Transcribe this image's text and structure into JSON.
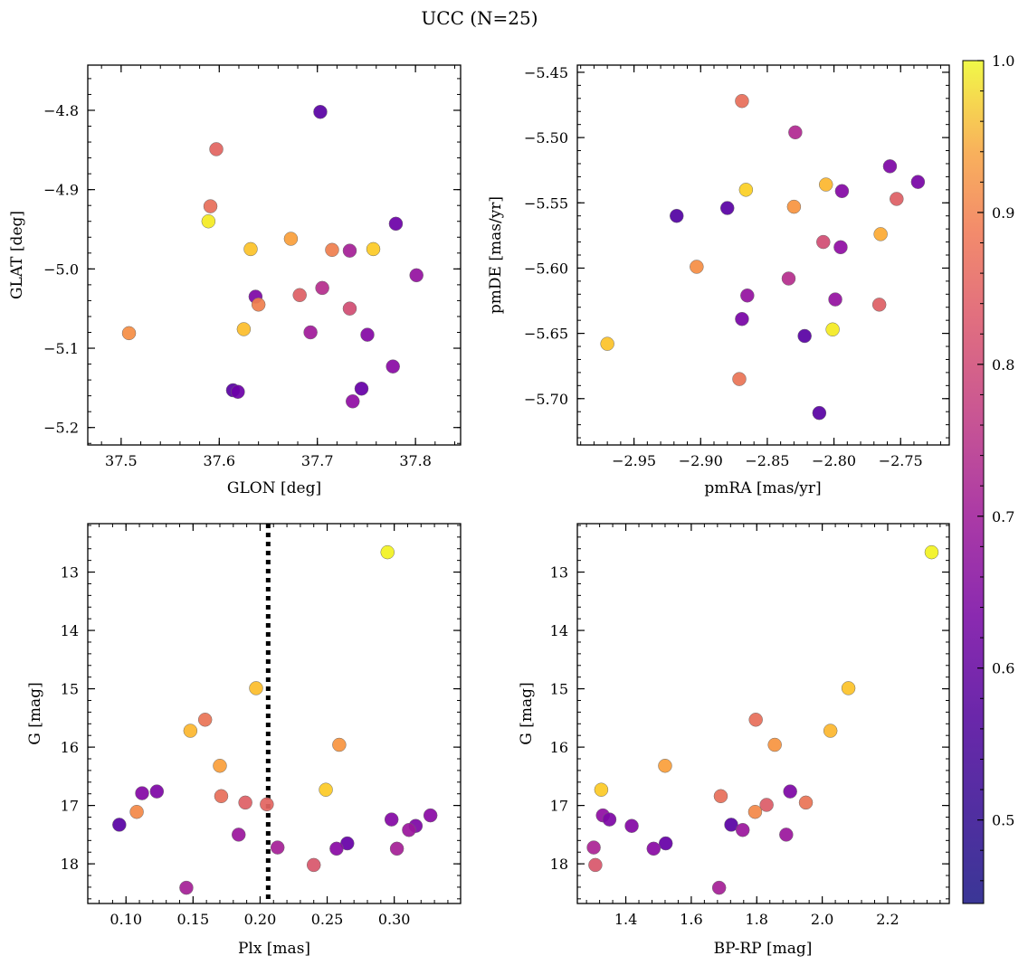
{
  "figure": {
    "title": "UCC (N=25)"
  },
  "colorbar": {
    "ticks": [
      "0.5",
      "0.6",
      "0.7",
      "0.8",
      "0.9",
      "1.0"
    ],
    "tick_values": [
      0.5,
      0.6,
      0.7,
      0.8,
      0.9,
      1.0
    ],
    "range": [
      0.445,
      1.0
    ],
    "colormap": "plasma"
  },
  "chart_data": [
    {
      "type": "scatter",
      "xlabel": "GLON [deg]",
      "ylabel": "GLAT [deg]",
      "xlim": [
        37.466,
        37.846
      ],
      "ylim": [
        -5.222,
        -4.743
      ],
      "xticks": [
        37.5,
        37.6,
        37.7,
        37.8
      ],
      "xtick_labels": [
        "37.5",
        "37.6",
        "37.7",
        "37.8"
      ],
      "yticks": [
        -4.8,
        -4.9,
        -5.0,
        -5.1,
        -5.2
      ],
      "ytick_labels": [
        "−4.8",
        "−4.9",
        "−5.0",
        "−5.1",
        "−5.2"
      ],
      "y_inverted": false,
      "points": [
        {
          "x": 37.703,
          "y": -4.802,
          "c": 0.47
        },
        {
          "x": 37.597,
          "y": -4.849,
          "c": 0.75
        },
        {
          "x": 37.591,
          "y": -4.921,
          "c": 0.77
        },
        {
          "x": 37.589,
          "y": -4.94,
          "c": 0.98
        },
        {
          "x": 37.78,
          "y": -4.943,
          "c": 0.5
        },
        {
          "x": 37.673,
          "y": -4.962,
          "c": 0.86
        },
        {
          "x": 37.632,
          "y": -4.975,
          "c": 0.92
        },
        {
          "x": 37.715,
          "y": -4.976,
          "c": 0.8
        },
        {
          "x": 37.733,
          "y": -4.977,
          "c": 0.6
        },
        {
          "x": 37.757,
          "y": -4.975,
          "c": 0.93
        },
        {
          "x": 37.801,
          "y": -5.008,
          "c": 0.57
        },
        {
          "x": 37.705,
          "y": -5.024,
          "c": 0.63
        },
        {
          "x": 37.682,
          "y": -5.033,
          "c": 0.74
        },
        {
          "x": 37.637,
          "y": -5.035,
          "c": 0.53
        },
        {
          "x": 37.64,
          "y": -5.045,
          "c": 0.8
        },
        {
          "x": 37.733,
          "y": -5.05,
          "c": 0.7
        },
        {
          "x": 37.625,
          "y": -5.076,
          "c": 0.91
        },
        {
          "x": 37.508,
          "y": -5.081,
          "c": 0.83
        },
        {
          "x": 37.693,
          "y": -5.08,
          "c": 0.59
        },
        {
          "x": 37.751,
          "y": -5.083,
          "c": 0.54
        },
        {
          "x": 37.777,
          "y": -5.123,
          "c": 0.55
        },
        {
          "x": 37.745,
          "y": -5.151,
          "c": 0.49
        },
        {
          "x": 37.614,
          "y": -5.153,
          "c": 0.47
        },
        {
          "x": 37.619,
          "y": -5.155,
          "c": 0.5
        },
        {
          "x": 37.736,
          "y": -5.167,
          "c": 0.56
        }
      ]
    },
    {
      "type": "scatter",
      "xlabel": "pmRA [mas/yr]",
      "ylabel": "pmDE [mas/yr]",
      "xlim": [
        -2.9925,
        -2.7135
      ],
      "ylim": [
        -5.7355,
        -5.4445
      ],
      "xticks": [
        -2.95,
        -2.9,
        -2.85,
        -2.8,
        -2.75
      ],
      "xtick_labels": [
        "−2.95",
        "−2.90",
        "−2.85",
        "−2.80",
        "−2.75"
      ],
      "yticks": [
        -5.45,
        -5.5,
        -5.55,
        -5.6,
        -5.65,
        -5.7
      ],
      "ytick_labels": [
        "−5.45",
        "−5.50",
        "−5.55",
        "−5.60",
        "−5.65",
        "−5.70"
      ],
      "y_inverted": false,
      "points": [
        {
          "x": -2.869,
          "y": -5.472,
          "c": 0.77
        },
        {
          "x": -2.829,
          "y": -5.496,
          "c": 0.62
        },
        {
          "x": -2.758,
          "y": -5.522,
          "c": 0.53
        },
        {
          "x": -2.737,
          "y": -5.534,
          "c": 0.52
        },
        {
          "x": -2.806,
          "y": -5.536,
          "c": 0.9
        },
        {
          "x": -2.866,
          "y": -5.54,
          "c": 0.94
        },
        {
          "x": -2.794,
          "y": -5.541,
          "c": 0.54
        },
        {
          "x": -2.753,
          "y": -5.547,
          "c": 0.74
        },
        {
          "x": -2.83,
          "y": -5.553,
          "c": 0.84
        },
        {
          "x": -2.88,
          "y": -5.554,
          "c": 0.47
        },
        {
          "x": -2.918,
          "y": -5.56,
          "c": 0.46
        },
        {
          "x": -2.765,
          "y": -5.574,
          "c": 0.88
        },
        {
          "x": -2.808,
          "y": -5.58,
          "c": 0.7
        },
        {
          "x": -2.795,
          "y": -5.584,
          "c": 0.56
        },
        {
          "x": -2.903,
          "y": -5.599,
          "c": 0.83
        },
        {
          "x": -2.834,
          "y": -5.608,
          "c": 0.63
        },
        {
          "x": -2.865,
          "y": -5.621,
          "c": 0.57
        },
        {
          "x": -2.799,
          "y": -5.624,
          "c": 0.57
        },
        {
          "x": -2.766,
          "y": -5.628,
          "c": 0.74
        },
        {
          "x": -2.869,
          "y": -5.639,
          "c": 0.52
        },
        {
          "x": -2.801,
          "y": -5.647,
          "c": 0.98
        },
        {
          "x": -2.822,
          "y": -5.652,
          "c": 0.47
        },
        {
          "x": -2.97,
          "y": -5.658,
          "c": 0.92
        },
        {
          "x": -2.871,
          "y": -5.685,
          "c": 0.78
        },
        {
          "x": -2.811,
          "y": -5.711,
          "c": 0.47
        }
      ]
    },
    {
      "type": "scatter",
      "xlabel": "Plx [mas]",
      "ylabel": "G [mag]",
      "xlim": [
        0.0715,
        0.3495
      ],
      "ylim": [
        18.68,
        12.17
      ],
      "xticks": [
        0.1,
        0.15,
        0.2,
        0.25,
        0.3
      ],
      "xtick_labels": [
        "0.10",
        "0.15",
        "0.20",
        "0.25",
        "0.30"
      ],
      "yticks": [
        13,
        14,
        15,
        16,
        17,
        18
      ],
      "ytick_labels": [
        "13",
        "14",
        "15",
        "16",
        "17",
        "18"
      ],
      "y_inverted": true,
      "vline": 0.206,
      "points": [
        {
          "x": 0.295,
          "y": 12.66,
          "c": 0.99
        },
        {
          "x": 0.197,
          "y": 14.99,
          "c": 0.91
        },
        {
          "x": 0.148,
          "y": 15.72,
          "c": 0.9
        },
        {
          "x": 0.159,
          "y": 15.53,
          "c": 0.78
        },
        {
          "x": 0.259,
          "y": 15.96,
          "c": 0.84
        },
        {
          "x": 0.17,
          "y": 16.32,
          "c": 0.86
        },
        {
          "x": 0.249,
          "y": 16.73,
          "c": 0.93
        },
        {
          "x": 0.112,
          "y": 16.79,
          "c": 0.54
        },
        {
          "x": 0.123,
          "y": 16.76,
          "c": 0.53
        },
        {
          "x": 0.171,
          "y": 16.84,
          "c": 0.77
        },
        {
          "x": 0.189,
          "y": 16.95,
          "c": 0.74
        },
        {
          "x": 0.205,
          "y": 16.98,
          "c": 0.75
        },
        {
          "x": 0.108,
          "y": 17.11,
          "c": 0.82
        },
        {
          "x": 0.095,
          "y": 17.33,
          "c": 0.47
        },
        {
          "x": 0.298,
          "y": 17.24,
          "c": 0.54
        },
        {
          "x": 0.327,
          "y": 17.17,
          "c": 0.55
        },
        {
          "x": 0.316,
          "y": 17.35,
          "c": 0.53
        },
        {
          "x": 0.311,
          "y": 17.42,
          "c": 0.58
        },
        {
          "x": 0.184,
          "y": 17.5,
          "c": 0.58
        },
        {
          "x": 0.213,
          "y": 17.72,
          "c": 0.6
        },
        {
          "x": 0.265,
          "y": 17.65,
          "c": 0.49
        },
        {
          "x": 0.257,
          "y": 17.74,
          "c": 0.55
        },
        {
          "x": 0.302,
          "y": 17.74,
          "c": 0.6
        },
        {
          "x": 0.24,
          "y": 18.02,
          "c": 0.72
        },
        {
          "x": 0.145,
          "y": 18.41,
          "c": 0.6
        }
      ]
    },
    {
      "type": "scatter",
      "xlabel": "BP-RP [mag]",
      "ylabel": "G [mag]",
      "xlim": [
        1.252,
        2.388
      ],
      "ylim": [
        18.68,
        12.17
      ],
      "xticks": [
        1.4,
        1.6,
        1.8,
        2.0,
        2.2
      ],
      "xtick_labels": [
        "1.4",
        "1.6",
        "1.8",
        "2.0",
        "2.2"
      ],
      "yticks": [
        13,
        14,
        15,
        16,
        17,
        18
      ],
      "ytick_labels": [
        "13",
        "14",
        "15",
        "16",
        "17",
        "18"
      ],
      "y_inverted": true,
      "points": [
        {
          "x": 2.334,
          "y": 12.66,
          "c": 0.99
        },
        {
          "x": 2.08,
          "y": 14.99,
          "c": 0.92
        },
        {
          "x": 1.797,
          "y": 15.53,
          "c": 0.77
        },
        {
          "x": 2.025,
          "y": 15.72,
          "c": 0.9
        },
        {
          "x": 1.855,
          "y": 15.96,
          "c": 0.84
        },
        {
          "x": 1.52,
          "y": 16.32,
          "c": 0.86
        },
        {
          "x": 1.325,
          "y": 16.73,
          "c": 0.93
        },
        {
          "x": 1.902,
          "y": 16.76,
          "c": 0.53
        },
        {
          "x": 1.69,
          "y": 16.84,
          "c": 0.77
        },
        {
          "x": 1.95,
          "y": 16.95,
          "c": 0.78
        },
        {
          "x": 1.83,
          "y": 16.99,
          "c": 0.73
        },
        {
          "x": 1.795,
          "y": 17.11,
          "c": 0.82
        },
        {
          "x": 1.33,
          "y": 17.17,
          "c": 0.56
        },
        {
          "x": 1.35,
          "y": 17.24,
          "c": 0.53
        },
        {
          "x": 1.418,
          "y": 17.35,
          "c": 0.54
        },
        {
          "x": 1.722,
          "y": 17.33,
          "c": 0.47
        },
        {
          "x": 1.757,
          "y": 17.42,
          "c": 0.58
        },
        {
          "x": 1.89,
          "y": 17.5,
          "c": 0.58
        },
        {
          "x": 1.522,
          "y": 17.65,
          "c": 0.49
        },
        {
          "x": 1.302,
          "y": 17.72,
          "c": 0.61
        },
        {
          "x": 1.485,
          "y": 17.74,
          "c": 0.55
        },
        {
          "x": 1.307,
          "y": 18.02,
          "c": 0.72
        },
        {
          "x": 1.685,
          "y": 18.41,
          "c": 0.6
        }
      ]
    }
  ]
}
